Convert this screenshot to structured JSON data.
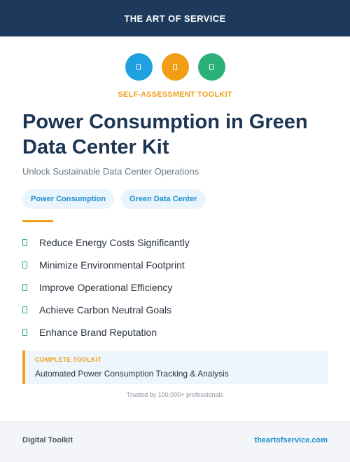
{
  "header": {
    "brand": "THE ART OF SERVICE"
  },
  "icons": [
    {
      "name": "blue-badge-icon",
      "color": "#1fa1df"
    },
    {
      "name": "orange-badge-icon",
      "color": "#f29d16"
    },
    {
      "name": "green-badge-icon",
      "color": "#2cb07a"
    }
  ],
  "kicker": "SELF-ASSESSMENT TOOLKIT",
  "title": "Power Consumption in Green Data Center Kit",
  "subtitle": "Unlock Sustainable Data Center Operations",
  "tags": [
    "Power Consumption",
    "Green Data Center"
  ],
  "benefits": [
    "Reduce Energy Costs Significantly",
    "Minimize Environmental Footprint",
    "Improve Operational Efficiency",
    "Achieve Carbon Neutral Goals",
    "Enhance Brand Reputation"
  ],
  "toolkit": {
    "label": "COMPLETE TOOLKIT",
    "description": "Automated Power Consumption Tracking & Analysis"
  },
  "trusted": "Trusted by 100,000+ professionals",
  "footer": {
    "left": "Digital Toolkit",
    "right": "theartofservice.com"
  },
  "colors": {
    "navy": "#1d3a5c",
    "accent": "#f0a020",
    "link": "#1e8fcf",
    "check": "#2cae74"
  }
}
